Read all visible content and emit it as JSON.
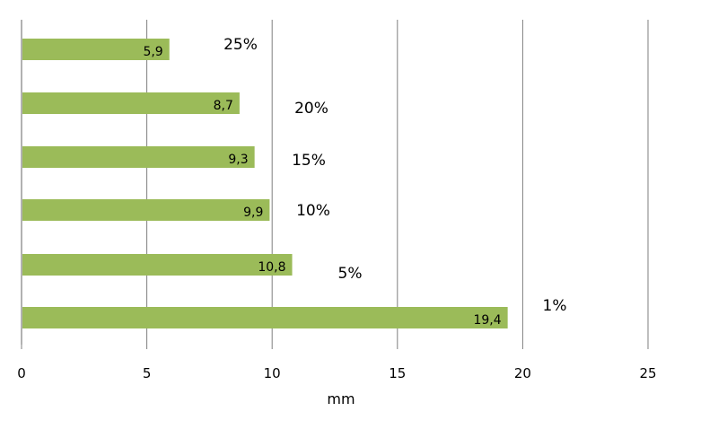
{
  "chart_data": {
    "type": "bar",
    "orientation": "horizontal",
    "categories": [
      "25%",
      "20%",
      "15%",
      "10%",
      "5%",
      "1%"
    ],
    "values": [
      5.9,
      8.7,
      9.3,
      9.9,
      10.8,
      19.4
    ],
    "data_labels": [
      "5,9",
      "8,7",
      "9,3",
      "9,9",
      "10,8",
      "19,4"
    ],
    "x_ticks": [
      "0",
      "5",
      "10",
      "15",
      "20",
      "25"
    ],
    "xlabel": "mm",
    "xlim": [
      0,
      25
    ],
    "grid": "vertical",
    "bar_color": "#9bbb59",
    "grid_color": "#7f7f7f"
  }
}
